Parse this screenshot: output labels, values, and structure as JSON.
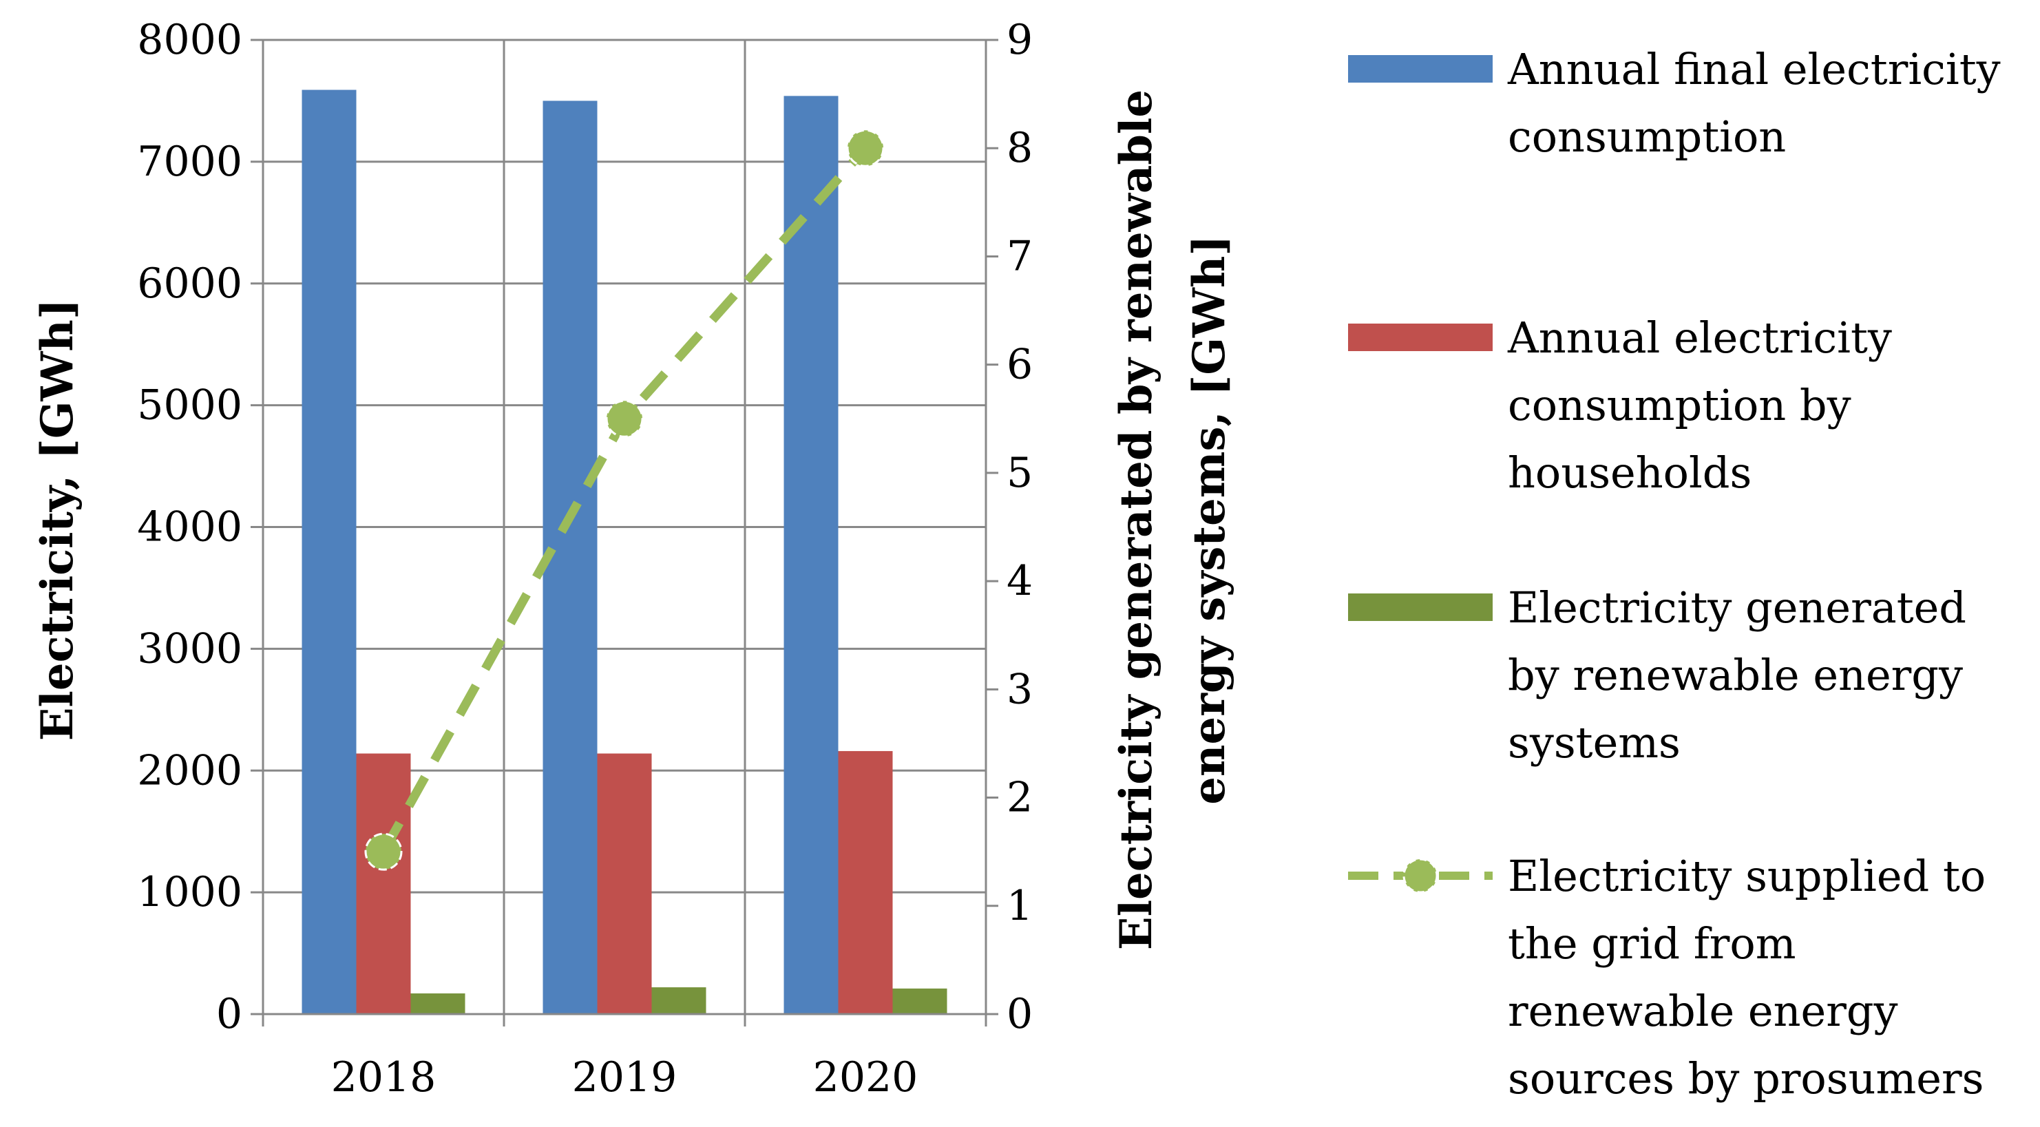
{
  "chart_data": {
    "type": "bar",
    "title": "",
    "categories": [
      "2018",
      "2019",
      "2020"
    ],
    "left_axis": {
      "label": "Electricity, [GWh]",
      "range": [
        0,
        8000
      ],
      "ticks": [
        "0",
        "1000",
        "2000",
        "3000",
        "4000",
        "5000",
        "6000",
        "7000",
        "8000"
      ]
    },
    "right_axis": {
      "label_line1": "Electricity generated by renewable",
      "label_line2": "energy systems, [GWh]",
      "range": [
        0,
        9
      ],
      "ticks": [
        "0",
        "1",
        "2",
        "3",
        "4",
        "5",
        "6",
        "7",
        "8",
        "9"
      ]
    },
    "series": [
      {
        "name": "Annual final electricity consumption",
        "legend_lines": [
          "Annual final electricity",
          "consumption"
        ],
        "type": "bar",
        "axis": "left",
        "color": "#4F81BD",
        "values": [
          7590,
          7500,
          7540
        ]
      },
      {
        "name": "Annual electricity consumption by households",
        "legend_lines": [
          "Annual electricity",
          "consumption by",
          "households"
        ],
        "type": "bar",
        "axis": "left",
        "color": "#C0504D",
        "values": [
          2140,
          2140,
          2160
        ]
      },
      {
        "name": "Electricity generated by renewable energy systems",
        "legend_lines": [
          "Electricity generated",
          "by renewable energy",
          "systems"
        ],
        "type": "bar",
        "axis": "left",
        "color": "#77933C",
        "values": [
          170,
          220,
          210
        ]
      },
      {
        "name": "Electricity supplied to the grid from renewable energy sources by prosumers",
        "legend_lines": [
          "Electricity supplied to",
          "the grid from",
          "renewable energy",
          "sources by prosumers"
        ],
        "type": "line",
        "axis": "right",
        "style": "dashed",
        "color": "#9BBB59",
        "values": [
          1.5,
          5.5,
          8.0
        ]
      }
    ],
    "grid": true,
    "legend_position": "right"
  }
}
